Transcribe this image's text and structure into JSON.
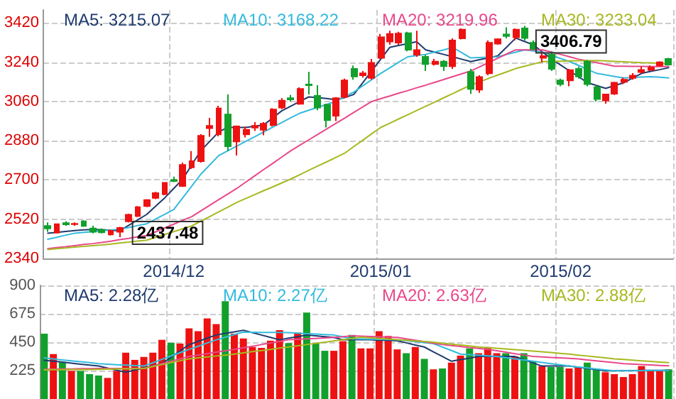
{
  "chart_data": [
    {
      "type": "candlestick",
      "categories": [
        null,
        null,
        null,
        null,
        null,
        null,
        null,
        null,
        null,
        null,
        null,
        null,
        null,
        null,
        "2014/12",
        null,
        null,
        null,
        null,
        null,
        null,
        null,
        null,
        null,
        null,
        null,
        null,
        null,
        null,
        null,
        null,
        null,
        null,
        null,
        null,
        null,
        null,
        "2015/01",
        null,
        null,
        null,
        null,
        null,
        null,
        null,
        null,
        null,
        null,
        null,
        null,
        null,
        null,
        null,
        null,
        null,
        null,
        null,
        "2015/02",
        null,
        null,
        null,
        null,
        null,
        null,
        null,
        null,
        null,
        null,
        null,
        null
      ],
      "ohlc": [
        [
          2489,
          2505,
          2462,
          2478
        ],
        [
          2458,
          2500,
          2455,
          2497
        ],
        [
          2502,
          2510,
          2490,
          2496
        ],
        [
          2497,
          2505,
          2490,
          2499
        ],
        [
          2510,
          2515,
          2485,
          2489
        ],
        [
          2478,
          2490,
          2455,
          2462
        ],
        [
          2471,
          2478,
          2455,
          2460
        ],
        [
          2450,
          2472,
          2445,
          2467
        ],
        [
          2462,
          2485,
          2437.48,
          2480
        ],
        [
          2510,
          2545,
          2505,
          2540
        ],
        [
          2535,
          2580,
          2530,
          2575
        ],
        [
          2580,
          2612,
          2575,
          2608
        ],
        [
          2618,
          2645,
          2612,
          2640
        ],
        [
          2635,
          2690,
          2630,
          2687
        ],
        [
          2700,
          2715,
          2690,
          2695
        ],
        [
          2672,
          2780,
          2668,
          2769
        ],
        [
          2758,
          2833,
          2750,
          2786
        ],
        [
          2786,
          2910,
          2780,
          2903
        ],
        [
          2938,
          2985,
          2898,
          2948
        ],
        [
          2909,
          3040,
          2900,
          3028
        ],
        [
          3000,
          3092,
          2833,
          2855
        ],
        [
          2877,
          2950,
          2812,
          2946
        ],
        [
          2909,
          2945,
          2895,
          2930
        ],
        [
          2940,
          2965,
          2925,
          2948
        ],
        [
          2930,
          2965,
          2905,
          2958
        ],
        [
          2952,
          3030,
          2945,
          3023
        ],
        [
          3032,
          3075,
          3025,
          3064
        ],
        [
          3075,
          3090,
          3060,
          3070
        ],
        [
          3049,
          3125,
          3045,
          3118
        ],
        [
          3138,
          3196,
          3092,
          3135
        ],
        [
          3086,
          3135,
          3020,
          3032
        ],
        [
          3045,
          3050,
          2941,
          2974
        ],
        [
          2995,
          3080,
          2970,
          3075
        ],
        [
          3081,
          3165,
          3075,
          3157
        ],
        [
          3210,
          3225,
          3160,
          3175
        ],
        [
          3180,
          3200,
          3170,
          3189
        ],
        [
          3168,
          3255,
          3160,
          3237
        ],
        [
          3260,
          3370,
          3255,
          3355
        ],
        [
          3335,
          3385,
          3320,
          3370
        ],
        [
          3330,
          3380,
          3320,
          3372
        ],
        [
          3373,
          3380,
          3290,
          3298
        ],
        [
          3275,
          3385,
          3265,
          3296
        ],
        [
          3265,
          3275,
          3200,
          3232
        ],
        [
          3232,
          3255,
          3225,
          3243
        ],
        [
          3243,
          3250,
          3200,
          3222
        ],
        [
          3222,
          3350,
          3210,
          3340
        ],
        [
          3350,
          3395,
          3345,
          3390
        ],
        [
          3196,
          3210,
          3095,
          3118
        ],
        [
          3114,
          3180,
          3100,
          3172
        ],
        [
          3189,
          3340,
          3180,
          3329
        ],
        [
          3325,
          3350,
          3320,
          3346
        ],
        [
          3368,
          3400,
          3350,
          3360
        ],
        [
          3355,
          3395,
          3340,
          3390
        ],
        [
          3395,
          3406.79,
          3340,
          3351
        ],
        [
          3329,
          3340,
          3295,
          3302
        ],
        [
          3260,
          3290,
          3240,
          3268
        ],
        [
          3275,
          3290,
          3200,
          3210
        ],
        [
          3157,
          3165,
          3130,
          3140
        ],
        [
          3157,
          3210,
          3130,
          3204
        ],
        [
          3210,
          3220,
          3165,
          3175
        ],
        [
          3243,
          3250,
          3130,
          3140
        ],
        [
          3125,
          3135,
          3060,
          3071
        ],
        [
          3065,
          3095,
          3050,
          3092
        ],
        [
          3096,
          3150,
          3090,
          3146
        ],
        [
          3150,
          3170,
          3140,
          3160
        ],
        [
          3168,
          3190,
          3160,
          3179
        ],
        [
          3195,
          3220,
          3190,
          3205
        ],
        [
          3205,
          3225,
          3200,
          3215
        ],
        [
          3225,
          3245,
          3220,
          3240
        ],
        [
          3255,
          3260,
          3225,
          3229
        ]
      ],
      "colors": [
        "#12a02c",
        "#ee1111",
        "#12a02c",
        "#ee1111",
        "#12a02c",
        "#12a02c",
        "#12a02c",
        "#ee1111",
        "#ee1111",
        "#ee1111",
        "#ee1111",
        "#ee1111",
        "#ee1111",
        "#ee1111",
        "#12a02c",
        "#ee1111",
        "#ee1111",
        "#ee1111",
        "#ee1111",
        "#ee1111",
        "#12a02c",
        "#ee1111",
        "#ee1111",
        "#ee1111",
        "#ee1111",
        "#ee1111",
        "#ee1111",
        "#12a02c",
        "#ee1111",
        "#12a02c",
        "#12a02c",
        "#12a02c",
        "#ee1111",
        "#ee1111",
        "#12a02c",
        "#ee1111",
        "#ee1111",
        "#ee1111",
        "#ee1111",
        "#ee1111",
        "#12a02c",
        "#ee1111",
        "#12a02c",
        "#ee1111",
        "#12a02c",
        "#ee1111",
        "#ee1111",
        "#12a02c",
        "#ee1111",
        "#ee1111",
        "#ee1111",
        "#12a02c",
        "#ee1111",
        "#12a02c",
        "#12a02c",
        "#ee1111",
        "#12a02c",
        "#12a02c",
        "#ee1111",
        "#12a02c",
        "#12a02c",
        "#12a02c",
        "#ee1111",
        "#ee1111",
        "#ee1111",
        "#ee1111",
        "#ee1111",
        "#ee1111",
        "#ee1111",
        "#12a02c"
      ],
      "series": [
        {
          "name": "MA5: 3215.07",
          "type": "line",
          "color": "#1f3a6e",
          "values": [
            2456,
            2460,
            2464,
            2468,
            2471,
            2473,
            2472,
            2469,
            2467,
            2492,
            2517,
            2542,
            2580,
            2618,
            2661,
            2704,
            2769,
            2834,
            2877,
            2920,
            2941,
            2941,
            2941,
            2947,
            2952,
            2985,
            3017,
            3038,
            3060,
            3081,
            3078,
            3074,
            3068,
            3078,
            3092,
            3146,
            3200,
            3254,
            3308,
            3317,
            3325,
            3334,
            3297,
            3286,
            3276,
            3265,
            3254,
            3243,
            3252,
            3260,
            3269,
            3310,
            3351,
            3335,
            3319,
            3286,
            3254,
            3227,
            3200,
            3173,
            3146,
            3133,
            3120,
            3133,
            3146,
            3168,
            3189,
            3198,
            3206,
            3215
          ]
        },
        {
          "name": "MA10: 3168.22",
          "type": "line",
          "color": "#33bbdd",
          "values": [
            2428,
            2437,
            2447,
            2456,
            2460,
            2463,
            2467,
            2470,
            2474,
            2482,
            2491,
            2499,
            2521,
            2542,
            2564,
            2618,
            2672,
            2726,
            2769,
            2812,
            2834,
            2855,
            2877,
            2898,
            2920,
            2942,
            2963,
            2985,
            3006,
            3020,
            3033,
            3047,
            3060,
            3082,
            3103,
            3132,
            3160,
            3189,
            3214,
            3240,
            3265,
            3271,
            3276,
            3287,
            3297,
            3308,
            3284,
            3260,
            3262,
            3263,
            3265,
            3276,
            3286,
            3297,
            3292,
            3286,
            3272,
            3257,
            3243,
            3225,
            3207,
            3189,
            3182,
            3175,
            3168,
            3170,
            3172,
            3174,
            3171,
            3168
          ]
        },
        {
          "name": "MA20: 3219.96",
          "type": "line",
          "color": "#e8488a",
          "values": [
            2385,
            2390,
            2394,
            2399,
            2404,
            2408,
            2413,
            2419,
            2426,
            2432,
            2439,
            2445,
            2462,
            2480,
            2497,
            2515,
            2532,
            2558,
            2584,
            2610,
            2635,
            2661,
            2690,
            2719,
            2748,
            2776,
            2805,
            2834,
            2859,
            2884,
            2909,
            2934,
            2959,
            2984,
            3010,
            3035,
            3060,
            3073,
            3085,
            3098,
            3110,
            3123,
            3135,
            3148,
            3161,
            3174,
            3187,
            3200,
            3219,
            3239,
            3258,
            3278,
            3297,
            3297,
            3297,
            3297,
            3286,
            3276,
            3265,
            3254,
            3246,
            3238,
            3230,
            3222,
            3222,
            3221,
            3221,
            3220,
            3220,
            3220
          ]
        },
        {
          "name": "MA30: 3233.04",
          "type": "line",
          "color": "#a8b820",
          "values": [
            2381,
            2385,
            2388,
            2392,
            2395,
            2399,
            2402,
            2406,
            2411,
            2415,
            2420,
            2424,
            2437,
            2450,
            2463,
            2476,
            2489,
            2511,
            2532,
            2554,
            2575,
            2597,
            2615,
            2633,
            2651,
            2668,
            2686,
            2704,
            2724,
            2744,
            2764,
            2783,
            2803,
            2823,
            2853,
            2882,
            2912,
            2941,
            2960,
            2980,
            2999,
            3019,
            3038,
            3057,
            3077,
            3096,
            3116,
            3135,
            3150,
            3166,
            3181,
            3196,
            3211,
            3222,
            3232,
            3243,
            3244,
            3245,
            3246,
            3247,
            3247,
            3248,
            3246,
            3244,
            3242,
            3240,
            3238,
            3237,
            3235,
            3233
          ]
        }
      ],
      "ylim": [
        2340,
        3480
      ],
      "yticks": [
        2340,
        2520,
        2700,
        2880,
        3060,
        3240,
        3420
      ],
      "annotations": [
        "3406.79",
        "2437.48"
      ],
      "grid": true,
      "legend": "top",
      "marker": "none"
    },
    {
      "type": "bar",
      "categories": [
        null,
        null,
        null,
        null,
        null,
        null,
        null,
        null,
        null,
        null,
        null,
        null,
        null,
        null,
        "2014/12",
        null,
        null,
        null,
        null,
        null,
        null,
        null,
        null,
        null,
        null,
        null,
        null,
        null,
        null,
        null,
        null,
        null,
        null,
        null,
        null,
        null,
        null,
        "2015/01",
        null,
        null,
        null,
        null,
        null,
        null,
        null,
        null,
        null,
        null,
        null,
        null,
        null,
        null,
        null,
        null,
        null,
        null,
        null,
        "2015/02",
        null,
        null,
        null,
        null,
        null,
        null,
        null,
        null,
        null,
        null,
        null,
        null
      ],
      "values": [
        518,
        356,
        291,
        223,
        223,
        197,
        186,
        167,
        223,
        367,
        310,
        333,
        367,
        469,
        446,
        439,
        560,
        537,
        639,
        594,
        775,
        518,
        480,
        412,
        405,
        462,
        545,
        443,
        526,
        685,
        439,
        382,
        382,
        458,
        507,
        401,
        401,
        537,
        499,
        393,
        363,
        412,
        318,
        235,
        242,
        288,
        344,
        401,
        363,
        412,
        363,
        363,
        337,
        363,
        299,
        261,
        254,
        254,
        242,
        250,
        288,
        242,
        212,
        197,
        174,
        197,
        261,
        223,
        223,
        235
      ],
      "colors": [
        "#12a02c",
        "#ee1111",
        "#12a02c",
        "#ee1111",
        "#12a02c",
        "#12a02c",
        "#12a02c",
        "#ee1111",
        "#ee1111",
        "#ee1111",
        "#ee1111",
        "#ee1111",
        "#ee1111",
        "#ee1111",
        "#12a02c",
        "#ee1111",
        "#ee1111",
        "#ee1111",
        "#ee1111",
        "#ee1111",
        "#12a02c",
        "#ee1111",
        "#ee1111",
        "#ee1111",
        "#ee1111",
        "#ee1111",
        "#ee1111",
        "#12a02c",
        "#ee1111",
        "#12a02c",
        "#12a02c",
        "#12a02c",
        "#ee1111",
        "#ee1111",
        "#12a02c",
        "#ee1111",
        "#ee1111",
        "#ee1111",
        "#ee1111",
        "#ee1111",
        "#12a02c",
        "#ee1111",
        "#12a02c",
        "#ee1111",
        "#12a02c",
        "#ee1111",
        "#ee1111",
        "#12a02c",
        "#ee1111",
        "#ee1111",
        "#ee1111",
        "#12a02c",
        "#ee1111",
        "#12a02c",
        "#12a02c",
        "#ee1111",
        "#12a02c",
        "#12a02c",
        "#ee1111",
        "#ee1111",
        "#12a02c",
        "#12a02c",
        "#ee1111",
        "#ee1111",
        "#ee1111",
        "#ee1111",
        "#ee1111",
        "#ee1111",
        "#ee1111",
        "#12a02c"
      ],
      "series": [
        {
          "name": "MA5: 2.28亿",
          "type": "line",
          "color": "#1f3a6e",
          "values": [
            307,
            299,
            292,
            284,
            276,
            269,
            261,
            245,
            228,
            212,
            229,
            246,
            263,
            280,
            330,
            381,
            431,
            456,
            482,
            507,
            520,
            532,
            545,
            526,
            507,
            488,
            469,
            482,
            494,
            507,
            501,
            494,
            488,
            469,
            469,
            469,
            469,
            466,
            464,
            461,
            445,
            428,
            412,
            374,
            337,
            299,
            312,
            324,
            337,
            337,
            337,
            337,
            337,
            312,
            286,
            261,
            261,
            261,
            261,
            252,
            242,
            233,
            223,
            224,
            225,
            225,
            226,
            227,
            227,
            228
          ]
        },
        {
          "name": "MA10: 2.27亿",
          "type": "line",
          "color": "#33bbdd",
          "values": [
            325,
            318,
            310,
            303,
            295,
            288,
            280,
            276,
            272,
            269,
            265,
            261,
            287,
            314,
            340,
            367,
            393,
            418,
            444,
            469,
            489,
            510,
            530,
            529,
            528,
            528,
            527,
            526,
            522,
            518,
            515,
            511,
            507,
            492,
            477,
            475,
            474,
            472,
            471,
            469,
            462,
            454,
            447,
            439,
            411,
            384,
            356,
            351,
            347,
            342,
            337,
            328,
            318,
            309,
            299,
            290,
            280,
            271,
            261,
            253,
            246,
            238,
            231,
            223,
            224,
            224,
            225,
            226,
            226,
            227
          ]
        },
        {
          "name": "MA20: 2.63亿",
          "type": "line",
          "color": "#e8488a",
          "values": [
            235,
            236,
            237,
            238,
            240,
            241,
            242,
            242,
            242,
            242,
            242,
            242,
            261,
            280,
            299,
            318,
            337,
            348,
            359,
            371,
            382,
            393,
            406,
            418,
            431,
            444,
            456,
            469,
            473,
            477,
            480,
            484,
            488,
            494,
            500,
            498,
            495,
            493,
            490,
            488,
            477,
            465,
            454,
            442,
            431,
            423,
            416,
            408,
            401,
            393,
            382,
            371,
            359,
            348,
            337,
            333,
            329,
            326,
            322,
            318,
            310,
            303,
            295,
            288,
            280,
            277,
            273,
            270,
            266,
            263
          ]
        },
        {
          "name": "MA30: 2.88亿",
          "type": "line",
          "color": "#a8b820",
          "values": [
            231,
            232,
            232,
            233,
            234,
            234,
            235,
            236,
            238,
            239,
            241,
            242,
            257,
            272,
            288,
            303,
            318,
            326,
            333,
            341,
            348,
            356,
            365,
            375,
            384,
            393,
            403,
            412,
            422,
            431,
            441,
            450,
            460,
            470,
            480,
            490,
            485,
            480,
            475,
            470,
            465,
            460,
            455,
            450,
            442,
            435,
            427,
            420,
            412,
            407,
            402,
            396,
            391,
            386,
            380,
            374,
            368,
            362,
            356,
            348,
            341,
            333,
            326,
            318,
            313,
            308,
            303,
            298,
            293,
            288
          ]
        }
      ],
      "ylim": [
        0,
        900
      ],
      "yticks": [
        225,
        450,
        675,
        900
      ],
      "tick_labels": "y",
      "grid": true,
      "legend": "top",
      "marker": "none"
    }
  ]
}
